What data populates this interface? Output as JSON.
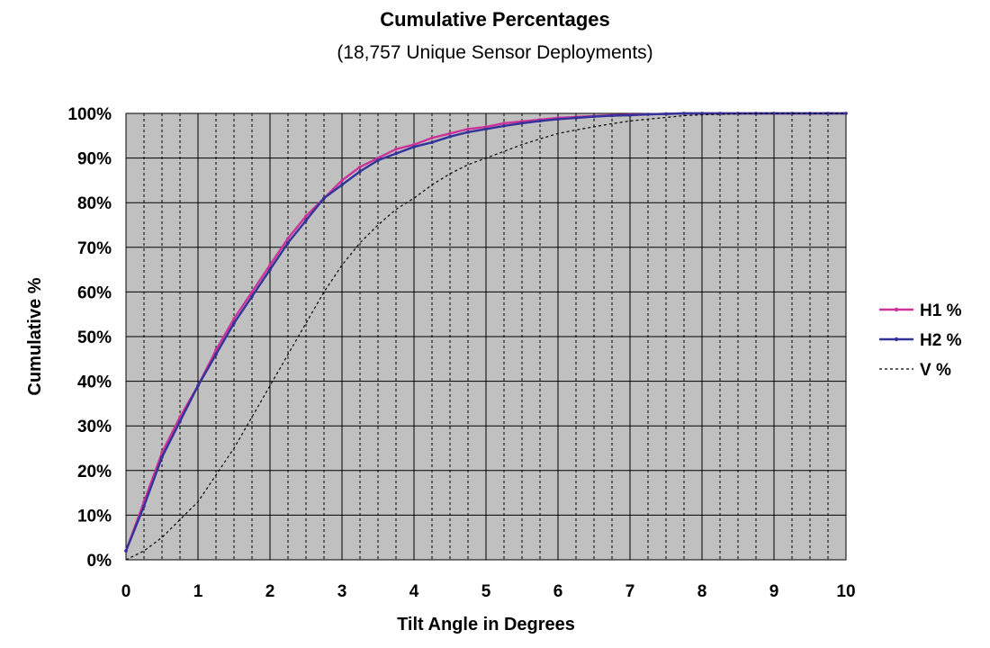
{
  "chart_data": {
    "type": "line",
    "title": "Cumulative Percentages",
    "subtitle": "(18,757 Unique Sensor Deployments)",
    "xlabel": "Tilt Angle in Degrees",
    "ylabel": "Cumulative %",
    "xlim": [
      0,
      10
    ],
    "ylim": [
      0,
      100
    ],
    "x_ticks": [
      "0",
      "1",
      "2",
      "3",
      "4",
      "5",
      "6",
      "7",
      "8",
      "9",
      "10"
    ],
    "y_ticks": [
      "0%",
      "10%",
      "20%",
      "30%",
      "40%",
      "50%",
      "60%",
      "70%",
      "80%",
      "90%",
      "100%"
    ],
    "grid": true,
    "legend_position": "right",
    "plot_background": "#c0c0c0",
    "series": [
      {
        "name": "H1 %",
        "color": "#cc3399",
        "style": "solid-markers",
        "x": [
          0,
          0.25,
          0.5,
          0.75,
          1,
          1.25,
          1.5,
          1.75,
          2,
          2.25,
          2.5,
          2.75,
          3,
          3.25,
          3.5,
          3.75,
          4,
          4.25,
          4.5,
          4.75,
          5,
          5.25,
          5.5,
          5.75,
          6,
          6.25,
          6.5,
          6.75,
          7,
          7.25,
          7.5,
          7.75,
          8,
          8.25,
          8.5,
          8.75,
          9,
          9.25,
          9.5,
          9.75,
          10
        ],
        "y": [
          2,
          13,
          24,
          32,
          39,
          47,
          54,
          60,
          66,
          72,
          77,
          81,
          85,
          88,
          90,
          92,
          93,
          94.5,
          95.5,
          96.5,
          97,
          97.8,
          98.2,
          98.6,
          99,
          99.2,
          99.4,
          99.6,
          99.7,
          99.8,
          99.9,
          100,
          100,
          100,
          100,
          100,
          100,
          100,
          100,
          100,
          100
        ]
      },
      {
        "name": "H2 %",
        "color": "#333399",
        "style": "solid-markers",
        "x": [
          0,
          0.25,
          0.5,
          0.75,
          1,
          1.25,
          1.5,
          1.75,
          2,
          2.25,
          2.5,
          2.75,
          3,
          3.25,
          3.5,
          3.75,
          4,
          4.25,
          4.5,
          4.75,
          5,
          5.25,
          5.5,
          5.75,
          6,
          6.25,
          6.5,
          6.75,
          7,
          7.25,
          7.5,
          7.75,
          8,
          8.25,
          8.5,
          8.75,
          9,
          9.25,
          9.5,
          9.75,
          10
        ],
        "y": [
          2,
          12,
          23,
          31,
          39,
          46,
          53,
          59,
          65,
          71,
          76,
          81,
          84,
          87,
          89.5,
          91,
          92.5,
          93.5,
          94.8,
          95.8,
          96.5,
          97.2,
          97.8,
          98.3,
          98.7,
          99,
          99.3,
          99.5,
          99.6,
          99.8,
          99.9,
          100,
          100,
          100,
          100,
          100,
          100,
          100,
          100,
          100,
          100
        ]
      },
      {
        "name": "V %",
        "color": "#000000",
        "style": "dashed",
        "x": [
          0,
          0.25,
          0.5,
          0.75,
          1,
          1.25,
          1.5,
          1.75,
          2,
          2.25,
          2.5,
          2.75,
          3,
          3.25,
          3.5,
          3.75,
          4,
          4.25,
          4.5,
          4.75,
          5,
          5.25,
          5.5,
          5.75,
          6,
          6.25,
          6.5,
          6.75,
          7,
          7.25,
          7.5,
          7.75,
          8,
          8.5,
          9,
          9.5,
          10
        ],
        "y": [
          0,
          2,
          5,
          9,
          13,
          19,
          25,
          32,
          39,
          46,
          53,
          60,
          66,
          71,
          75,
          78.5,
          81,
          84,
          86.5,
          88.5,
          90,
          91.5,
          93,
          94.3,
          95.5,
          96.3,
          97,
          97.7,
          98.3,
          98.7,
          99.1,
          99.5,
          99.7,
          99.9,
          100,
          100,
          100
        ]
      }
    ]
  }
}
